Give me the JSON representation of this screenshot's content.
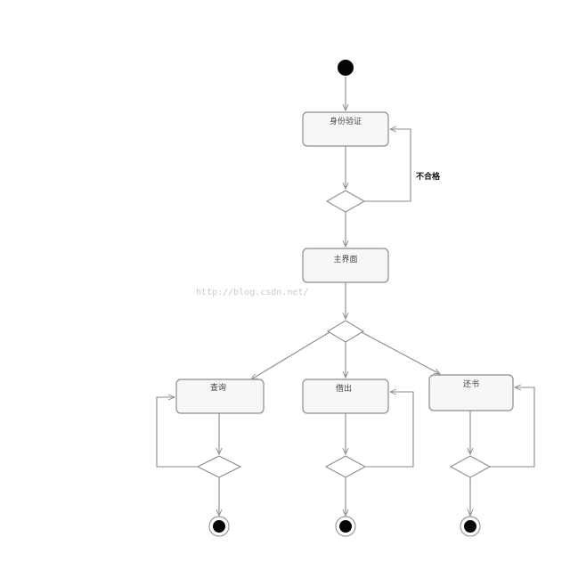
{
  "diagram": {
    "activities": [
      {
        "id": "verify",
        "label": "身份验证"
      },
      {
        "id": "main",
        "label": "主界面"
      },
      {
        "id": "query",
        "label": "查询"
      },
      {
        "id": "borrow",
        "label": "借出"
      },
      {
        "id": "return",
        "label": "还书"
      }
    ],
    "guard_label": "不合格",
    "watermark": "http://blog.csdn.net/"
  }
}
